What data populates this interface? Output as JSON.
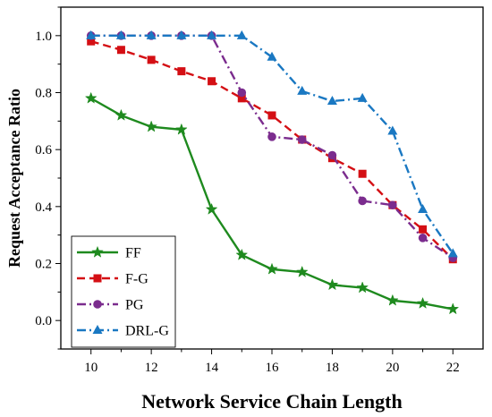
{
  "chart_data": {
    "type": "line",
    "title": "",
    "xlabel": "Network Service Chain Length",
    "ylabel": "Request Acceptance Ratio",
    "xlim": [
      9,
      23
    ],
    "ylim": [
      -0.1,
      1.1
    ],
    "xticks": [
      10,
      12,
      14,
      16,
      18,
      20,
      22
    ],
    "xtick_labels": [
      "10",
      "12",
      "14",
      "16",
      "18",
      "20",
      "22"
    ],
    "yticks": [
      0.0,
      0.2,
      0.4,
      0.6,
      0.8,
      1.0
    ],
    "ytick_labels": [
      "0.0",
      "0.2",
      "0.4",
      "0.6",
      "0.8",
      "1.0"
    ],
    "grid": false,
    "legend_position": "bottom-left",
    "x": [
      10,
      11,
      12,
      13,
      14,
      15,
      16,
      17,
      18,
      19,
      20,
      21,
      22
    ],
    "series": [
      {
        "name": "FF",
        "color": "#1e8a1e",
        "marker": "star",
        "line_style": "solid",
        "values": [
          0.78,
          0.72,
          0.68,
          0.67,
          0.39,
          0.23,
          0.18,
          0.17,
          0.125,
          0.115,
          0.07,
          0.06,
          0.04
        ]
      },
      {
        "name": "F-G",
        "color": "#d40f14",
        "marker": "square",
        "line_style": "dashed",
        "values": [
          0.98,
          0.95,
          0.915,
          0.875,
          0.84,
          0.78,
          0.72,
          0.635,
          0.57,
          0.515,
          0.405,
          0.32,
          0.215
        ]
      },
      {
        "name": "PG",
        "color": "#7b2c8e",
        "marker": "circle",
        "line_style": "dash-dot",
        "values": [
          1.0,
          1.0,
          1.0,
          1.0,
          1.0,
          0.8,
          0.645,
          0.635,
          0.58,
          0.42,
          0.405,
          0.29,
          0.22
        ]
      },
      {
        "name": "DRL-G",
        "color": "#1a78c2",
        "marker": "triangle",
        "line_style": "dash-dot",
        "values": [
          1.0,
          1.0,
          1.0,
          1.0,
          1.0,
          1.0,
          0.925,
          0.805,
          0.77,
          0.78,
          0.665,
          0.39,
          0.235
        ]
      }
    ]
  }
}
